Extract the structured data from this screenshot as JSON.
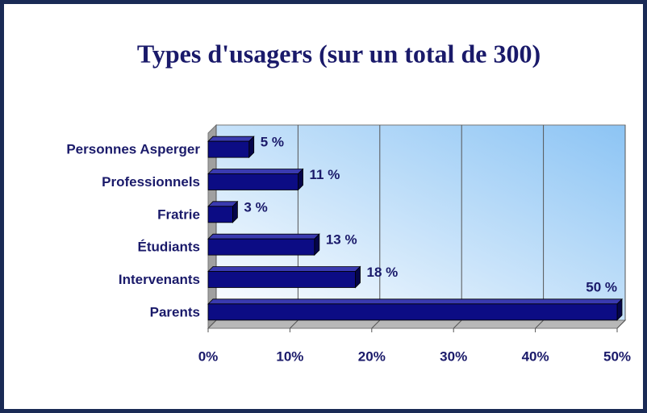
{
  "chart_data": {
    "type": "bar",
    "orientation": "horizontal",
    "title": "Types d'usagers (sur un total de 300)",
    "categories": [
      "Personnes Asperger",
      "Professionnels",
      "Fratrie",
      "Étudiants",
      "Intervenants",
      "Parents"
    ],
    "values": [
      5,
      11,
      3,
      13,
      18,
      50
    ],
    "value_labels": [
      "5 %",
      "11 %",
      "3 %",
      "13 %",
      "18 %",
      "50 %"
    ],
    "color": "#0c0c84",
    "xlim": [
      0,
      50
    ],
    "xticks": [
      {
        "value": 0,
        "label": "0%"
      },
      {
        "value": 10,
        "label": "10%"
      },
      {
        "value": 20,
        "label": "20%"
      },
      {
        "value": 30,
        "label": "30%"
      },
      {
        "value": 40,
        "label": "40%"
      },
      {
        "value": 50,
        "label": "50%"
      }
    ],
    "grid": true
  }
}
